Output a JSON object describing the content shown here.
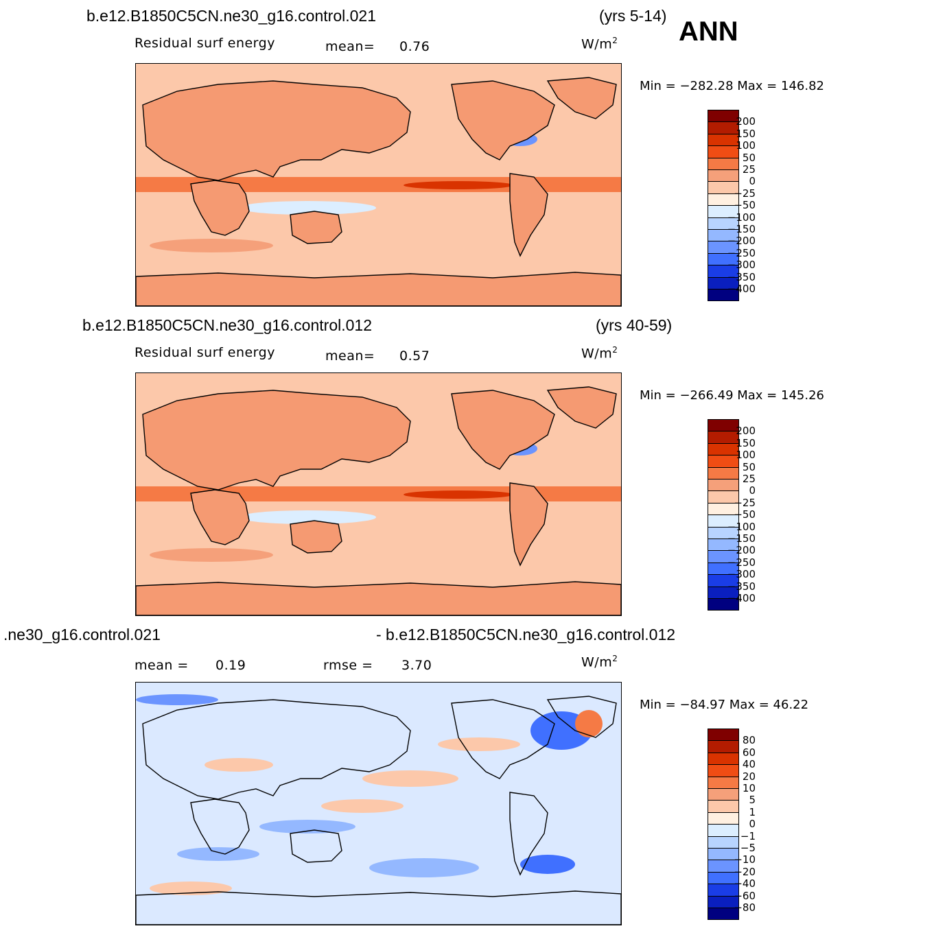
{
  "season": "ANN",
  "panels": [
    {
      "case": "b.e12.B1850C5CN.ne30_g16.control.021",
      "years": "(yrs 5-14)",
      "field_label": "Residual  surf  energy",
      "mean_label": "mean=",
      "mean_value": "0.76",
      "units": "W/m",
      "units_sup": "2",
      "minmax": "Min  =  −282.28  Max  =  146.82",
      "colorbar_labels": [
        "200",
        "150",
        "100",
        "50",
        "25",
        "0",
        "−25",
        "−50",
        "−100",
        "−150",
        "−200",
        "−250",
        "−300",
        "−350",
        "−400"
      ]
    },
    {
      "case": "b.e12.B1850C5CN.ne30_g16.control.012",
      "years": "(yrs 40-59)",
      "field_label": "Residual  surf  energy",
      "mean_label": "mean=",
      "mean_value": "0.57",
      "units": "W/m",
      "units_sup": "2",
      "minmax": "Min  =  −266.49  Max  =  145.26",
      "colorbar_labels": [
        "200",
        "150",
        "100",
        "50",
        "25",
        "0",
        "−25",
        "−50",
        "−100",
        "−150",
        "−200",
        "−250",
        "−300",
        "−350",
        "−400"
      ]
    },
    {
      "case_left": ".ne30_g16.control.021",
      "case_right": "- b.e12.B1850C5CN.ne30_g16.control.012",
      "mean_label": "mean  =",
      "mean_value": "0.19",
      "rmse_label": "rmse  =",
      "rmse_value": "3.70",
      "units": "W/m",
      "units_sup": "2",
      "minmax": "Min  =  −84.97  Max  =    46.22",
      "colorbar_labels": [
        "80",
        "60",
        "40",
        "20",
        "10",
        "5",
        "1",
        "0",
        "−1",
        "−5",
        "−10",
        "−20",
        "−40",
        "−60",
        "−80"
      ]
    }
  ],
  "colors": {
    "abs_scale": [
      "#7f0000",
      "#b31c00",
      "#d93300",
      "#f04d14",
      "#f57a45",
      "#f5a07a",
      "#fcc8aa",
      "#fff0e1",
      "#dceeff",
      "#b8d4ff",
      "#94b8ff",
      "#6b94ff",
      "#4070ff",
      "#1a3de6",
      "#0a1fbf",
      "#000080"
    ],
    "diff_scale": [
      "#7f0000",
      "#b31c00",
      "#d93300",
      "#f04d14",
      "#f57a45",
      "#f5a07a",
      "#fcc8aa",
      "#fff0e1",
      "#dceeff",
      "#b8d4ff",
      "#94b8ff",
      "#6b94ff",
      "#4070ff",
      "#1a3de6",
      "#0a1fbf",
      "#000080"
    ],
    "ocean_abs": "#fcc8aa",
    "land_abs": "#f59a72",
    "ocean_diff": "#dbe9ff"
  }
}
